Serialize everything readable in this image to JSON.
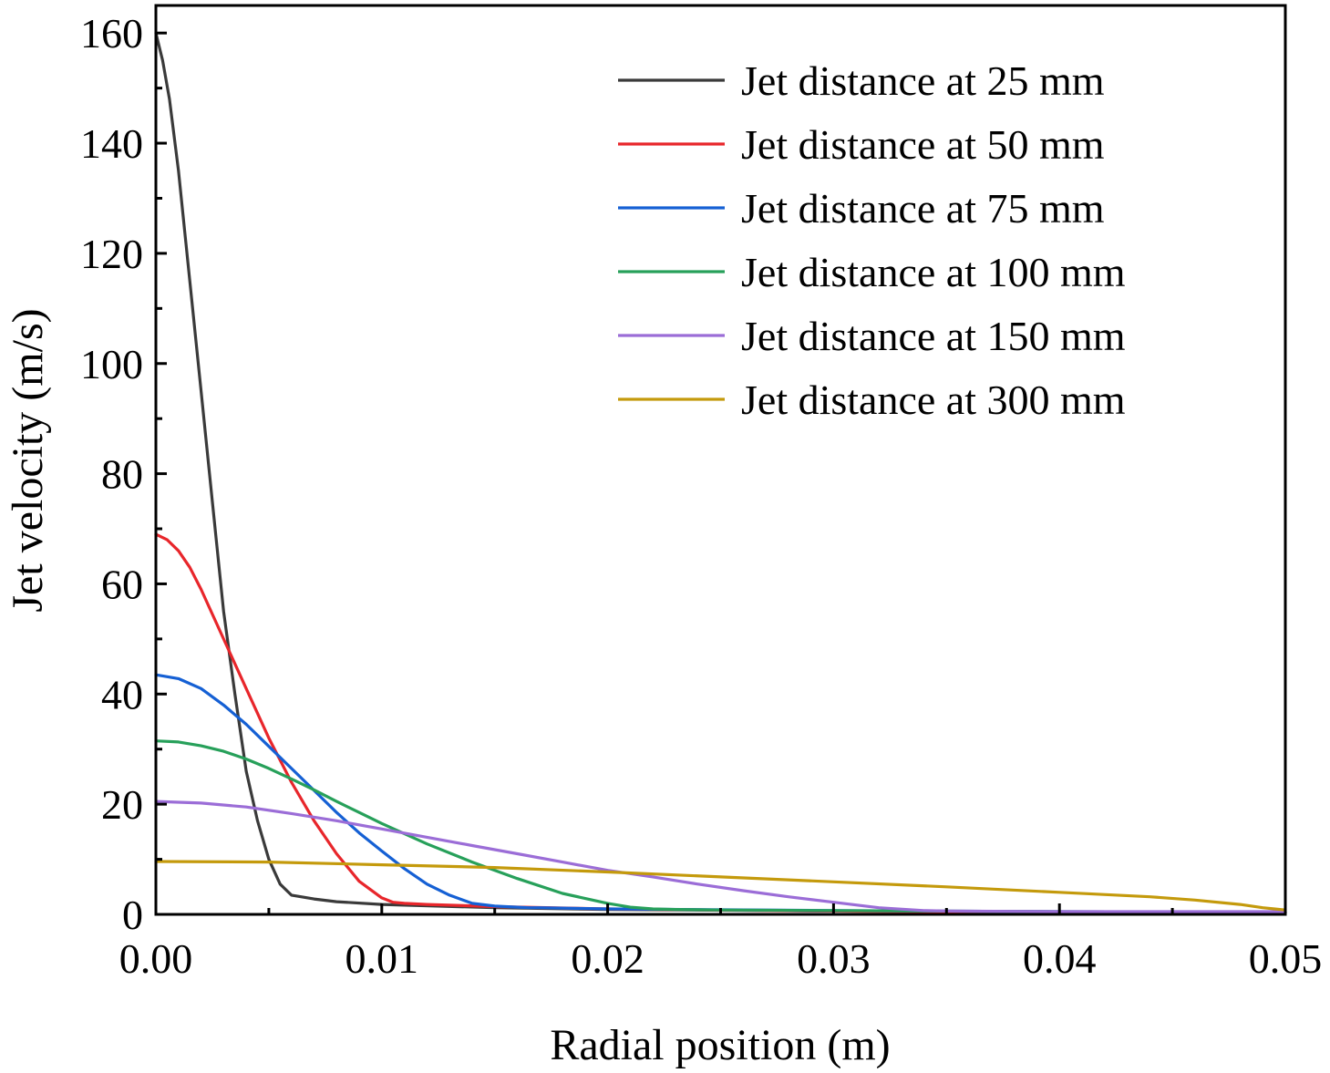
{
  "chart_data": {
    "type": "line",
    "title": "",
    "xlabel": "Radial position (m)",
    "ylabel": "Jet velocity (m/s)",
    "xlim": [
      0,
      0.05
    ],
    "ylim": [
      0,
      165
    ],
    "grid": false,
    "legend_position": "top-right",
    "x_ticks": [
      {
        "value": 0.0,
        "label": "0.00"
      },
      {
        "value": 0.01,
        "label": "0.01"
      },
      {
        "value": 0.02,
        "label": "0.02"
      },
      {
        "value": 0.03,
        "label": "0.03"
      },
      {
        "value": 0.04,
        "label": "0.04"
      },
      {
        "value": 0.05,
        "label": "0.05"
      }
    ],
    "y_ticks": [
      {
        "value": 0,
        "label": "0"
      },
      {
        "value": 20,
        "label": "20"
      },
      {
        "value": 40,
        "label": "40"
      },
      {
        "value": 60,
        "label": "60"
      },
      {
        "value": 80,
        "label": "80"
      },
      {
        "value": 100,
        "label": "100"
      },
      {
        "value": 120,
        "label": "120"
      },
      {
        "value": 140,
        "label": "140"
      },
      {
        "value": 160,
        "label": "160"
      }
    ],
    "series": [
      {
        "name": "Jet distance at 25 mm",
        "color": "#3a3a3a",
        "x": [
          0,
          0.0003,
          0.0006,
          0.001,
          0.0015,
          0.002,
          0.0025,
          0.003,
          0.0035,
          0.004,
          0.0045,
          0.005,
          0.0055,
          0.006,
          0.007,
          0.008,
          0.01,
          0.015,
          0.02,
          0.03,
          0.04,
          0.05
        ],
        "y": [
          160,
          155,
          148,
          135,
          115,
          95,
          75,
          55,
          40,
          26,
          17,
          10,
          5.5,
          3.5,
          2.8,
          2.3,
          1.8,
          1.2,
          0.9,
          0.6,
          0.4,
          0.3
        ]
      },
      {
        "name": "Jet distance at 50 mm",
        "color": "#e8262b",
        "x": [
          0,
          0.0005,
          0.001,
          0.0015,
          0.002,
          0.003,
          0.004,
          0.005,
          0.006,
          0.007,
          0.008,
          0.009,
          0.01,
          0.0105,
          0.011,
          0.012,
          0.015,
          0.02,
          0.03,
          0.04,
          0.05
        ],
        "y": [
          69,
          68,
          66,
          63,
          59,
          50,
          41,
          32,
          24,
          17,
          11,
          6,
          3,
          2.2,
          2,
          1.8,
          1.4,
          1,
          0.6,
          0.4,
          0.3
        ]
      },
      {
        "name": "Jet distance at 75 mm",
        "color": "#1560d4",
        "x": [
          0,
          0.001,
          0.002,
          0.003,
          0.004,
          0.005,
          0.006,
          0.007,
          0.008,
          0.009,
          0.01,
          0.011,
          0.012,
          0.013,
          0.014,
          0.015,
          0.016,
          0.0165,
          0.017,
          0.02,
          0.03,
          0.04,
          0.05
        ],
        "y": [
          43.5,
          42.8,
          41,
          38,
          34.5,
          30.5,
          26.5,
          22.5,
          18.5,
          14.8,
          11.5,
          8.3,
          5.5,
          3.5,
          2,
          1.5,
          1.3,
          1.2,
          1.2,
          1,
          0.7,
          0.5,
          0.4
        ]
      },
      {
        "name": "Jet distance at 100 mm",
        "color": "#27a05a",
        "x": [
          0,
          0.001,
          0.002,
          0.003,
          0.004,
          0.005,
          0.006,
          0.007,
          0.008,
          0.009,
          0.01,
          0.012,
          0.014,
          0.016,
          0.018,
          0.02,
          0.021,
          0.022,
          0.023,
          0.025,
          0.03,
          0.04,
          0.05
        ],
        "y": [
          31.5,
          31.3,
          30.6,
          29.6,
          28.2,
          26.5,
          24.6,
          22.6,
          20.5,
          18.5,
          16.5,
          12.8,
          9.5,
          6.5,
          3.8,
          2,
          1.3,
          1,
          0.9,
          0.8,
          0.7,
          0.5,
          0.4
        ]
      },
      {
        "name": "Jet distance at 150 mm",
        "color": "#9b6dd7",
        "x": [
          0,
          0.002,
          0.004,
          0.006,
          0.008,
          0.01,
          0.012,
          0.014,
          0.016,
          0.018,
          0.02,
          0.022,
          0.024,
          0.026,
          0.028,
          0.03,
          0.032,
          0.034,
          0.035,
          0.04,
          0.045,
          0.05
        ],
        "y": [
          20.5,
          20.2,
          19.5,
          18.3,
          17,
          15.5,
          14,
          12.5,
          11,
          9.5,
          8,
          6.8,
          5.5,
          4.3,
          3.2,
          2.2,
          1.2,
          0.7,
          0.6,
          0.5,
          0.5,
          0.5
        ]
      },
      {
        "name": "Jet distance at 300 mm",
        "color": "#c49a0c",
        "x": [
          0,
          0.005,
          0.01,
          0.015,
          0.02,
          0.025,
          0.03,
          0.035,
          0.04,
          0.044,
          0.046,
          0.048,
          0.049,
          0.05
        ],
        "y": [
          9.6,
          9.5,
          9,
          8.5,
          7.7,
          6.8,
          5.9,
          5,
          4,
          3.2,
          2.6,
          1.8,
          1.2,
          0.8
        ]
      }
    ]
  }
}
